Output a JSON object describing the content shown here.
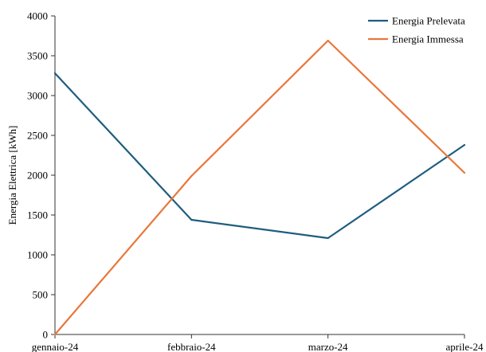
{
  "chart_data": {
    "type": "line",
    "categories": [
      "gennaio-24",
      "febbraio-24",
      "marzo-24",
      "aprile-24"
    ],
    "series": [
      {
        "name": "Energia Prelevata",
        "values": [
          3280,
          1440,
          1210,
          2380
        ],
        "color": "#1f5d7e"
      },
      {
        "name": "Energia Immessa",
        "values": [
          0,
          1990,
          3690,
          2030
        ],
        "color": "#e8773b"
      }
    ],
    "xlabel": "",
    "ylabel": "Energia Elettrica [kWh]",
    "ylim": [
      0,
      4000
    ],
    "yticks": [
      0,
      500,
      1000,
      1500,
      2000,
      2500,
      3000,
      3500,
      4000
    ],
    "grid": false,
    "legend_position": "top-right"
  }
}
